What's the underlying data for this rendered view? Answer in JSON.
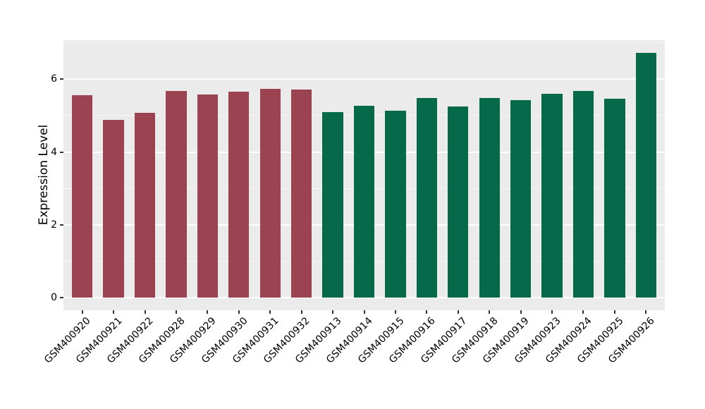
{
  "chart_data": {
    "type": "bar",
    "title": "",
    "xlabel": "",
    "ylabel": "Expression Level",
    "categories": [
      "GSM400920",
      "GSM400921",
      "GSM400922",
      "GSM400928",
      "GSM400929",
      "GSM400930",
      "GSM400931",
      "GSM400932",
      "GSM400913",
      "GSM400914",
      "GSM400915",
      "GSM400916",
      "GSM400917",
      "GSM400918",
      "GSM400919",
      "GSM400923",
      "GSM400924",
      "GSM400925",
      "GSM400926"
    ],
    "values": [
      5.57,
      4.89,
      5.07,
      5.68,
      5.58,
      5.66,
      5.73,
      5.71,
      5.1,
      5.28,
      5.13,
      5.49,
      5.26,
      5.49,
      5.43,
      5.59,
      5.67,
      5.46,
      6.73
    ],
    "bar_colors": [
      "#9C4352",
      "#9C4352",
      "#9C4352",
      "#9C4352",
      "#9C4352",
      "#9C4352",
      "#9C4352",
      "#9C4352",
      "#066A4A",
      "#066A4A",
      "#066A4A",
      "#066A4A",
      "#066A4A",
      "#066A4A",
      "#066A4A",
      "#066A4A",
      "#066A4A",
      "#066A4A",
      "#066A4A"
    ],
    "group_colors": {
      "left_group": "#9C4352",
      "right_group": "#066A4A"
    },
    "ylim": [
      -0.34,
      7.07
    ],
    "y_ticks": [
      0,
      2,
      4,
      6
    ],
    "y_minor_ticks": [
      1,
      3,
      5,
      7
    ],
    "grid": true,
    "legend": "none",
    "panel_bg": "#EBEBEB",
    "grid_major_color": "#FFFFFF",
    "grid_minor_color": "rgba(255,255,255,0.55)",
    "text_color": "#000000"
  }
}
